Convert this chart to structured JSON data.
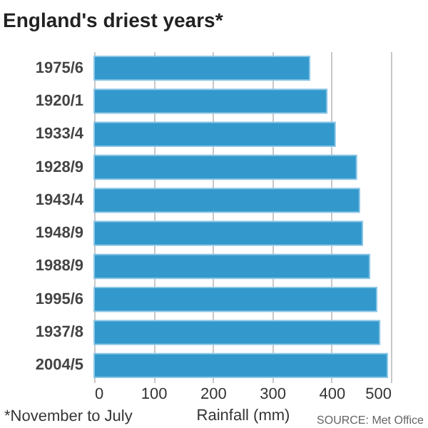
{
  "chart_data": {
    "type": "bar",
    "orientation": "horizontal",
    "title": "England's driest years*",
    "xlabel": "Rainfall (mm)",
    "categories": [
      "1975/6",
      "1920/1",
      "1933/4",
      "1928/9",
      "1943/4",
      "1948/9",
      "1988/9",
      "1995/6",
      "1937/8",
      "2004/5"
    ],
    "values": [
      363,
      392,
      406,
      442,
      447,
      452,
      464,
      476,
      481,
      494
    ],
    "color": "#3399cc",
    "xlim": [
      0,
      500
    ],
    "xticks": [
      0,
      100,
      200,
      300,
      400,
      500
    ],
    "grid": "x",
    "annotations": [
      "*November to July",
      "SOURCE: Met Office"
    ]
  }
}
